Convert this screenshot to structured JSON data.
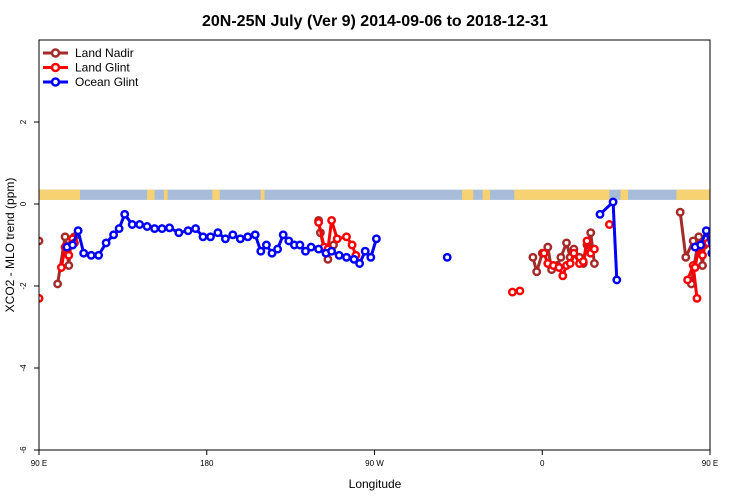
{
  "chart_data": {
    "type": "line",
    "title": "20N-25N July (Ver 9)   2014-09-06 to 2018-12-31",
    "xlabel": "Longitude",
    "ylabel": "XCO2 - MLO trend (ppm)",
    "xlim": [
      90,
      450
    ],
    "ylim": [
      -6,
      4
    ],
    "x_ticks": [
      {
        "value": 90,
        "label": "90 E"
      },
      {
        "value": 180,
        "label": "180"
      },
      {
        "value": 270,
        "label": "90 W"
      },
      {
        "value": 360,
        "label": "0"
      },
      {
        "value": 450,
        "label": "90 E"
      },
      {
        "value": 540,
        "label": "180"
      }
    ],
    "y_ticks": [
      {
        "value": -6,
        "label": "-6"
      },
      {
        "value": -4,
        "label": "-4"
      },
      {
        "value": -2,
        "label": "-2"
      },
      {
        "value": 0,
        "label": "0"
      },
      {
        "value": 2,
        "label": "2"
      }
    ],
    "grid": false,
    "legend_position": "top-left",
    "colors": {
      "land": "#f6d272",
      "ocean": "#a7bcd8"
    },
    "land_segments": [
      [
        90,
        112
      ],
      [
        148,
        152
      ],
      [
        157,
        159
      ],
      [
        183,
        187
      ],
      [
        209,
        211
      ],
      [
        317,
        323
      ],
      [
        328,
        332
      ],
      [
        345,
        396
      ],
      [
        402,
        406
      ],
      [
        432,
        450
      ],
      [
        450,
        460
      ]
    ],
    "series": [
      {
        "name": "Land Nadir",
        "color": "#a52a2a",
        "segments": [
          [
            [
              90,
              -0.9
            ]
          ],
          [
            [
              100,
              -1.95
            ],
            [
              104,
              -0.8
            ],
            [
              106,
              -1.5
            ],
            [
              107,
              -1.0
            ],
            [
              109,
              -0.8
            ]
          ],
          [
            [
              240,
              -0.4
            ],
            [
              241,
              -0.7
            ],
            [
              243,
              -1.1
            ],
            [
              245,
              -1.35
            ],
            [
              246,
              -1.15
            ],
            [
              248,
              -1.0
            ]
          ],
          [
            [
              355,
              -1.3
            ],
            [
              357,
              -1.65
            ],
            [
              360,
              -1.2
            ],
            [
              363,
              -1.05
            ],
            [
              365,
              -1.6
            ],
            [
              368,
              -1.5
            ],
            [
              370,
              -1.3
            ],
            [
              373,
              -0.95
            ],
            [
              375,
              -1.3
            ],
            [
              377,
              -1.1
            ],
            [
              380,
              -1.3
            ],
            [
              382,
              -1.45
            ],
            [
              384,
              -1.0
            ],
            [
              386,
              -0.7
            ],
            [
              388,
              -1.45
            ]
          ],
          [
            [
              434,
              -0.2
            ],
            [
              437,
              -1.3
            ],
            [
              441,
              -0.9
            ]
          ],
          [
            [
              440,
              -1.95
            ],
            [
              444,
              -0.8
            ],
            [
              446,
              -1.5
            ],
            [
              447,
              -1.0
            ],
            [
              449,
              -0.8
            ]
          ]
        ]
      },
      {
        "name": "Land Glint",
        "color": "#ff0000",
        "segments": [
          [
            [
              90,
              -2.3
            ]
          ],
          [
            [
              102,
              -1.55
            ],
            [
              104,
              -1.05
            ],
            [
              106,
              -1.25
            ],
            [
              108,
              -0.85
            ],
            [
              109,
              -0.95
            ]
          ],
          [
            [
              240,
              -0.45
            ],
            [
              243,
              -1.05
            ],
            [
              245,
              -1.1
            ],
            [
              247,
              -0.4
            ],
            [
              250,
              -0.85
            ],
            [
              255,
              -0.8
            ],
            [
              258,
              -1.0
            ],
            [
              260,
              -1.25
            ]
          ],
          [
            [
              344,
              -2.15
            ],
            [
              348,
              -2.12
            ]
          ],
          [
            [
              361,
              -1.2
            ],
            [
              363,
              -1.45
            ],
            [
              366,
              -1.5
            ],
            [
              369,
              -1.55
            ],
            [
              371,
              -1.75
            ],
            [
              373,
              -1.5
            ],
            [
              375,
              -1.45
            ],
            [
              377,
              -1.2
            ],
            [
              380,
              -1.45
            ],
            [
              382,
              -1.4
            ],
            [
              384,
              -0.9
            ],
            [
              386,
              -1.2
            ],
            [
              388,
              -1.1
            ]
          ],
          [
            [
              396,
              -0.5
            ]
          ],
          [
            [
              438,
              -1.85
            ],
            [
              441,
              -1.5
            ],
            [
              443,
              -2.3
            ]
          ],
          [
            [
              442,
              -1.55
            ],
            [
              444,
              -1.05
            ],
            [
              446,
              -1.25
            ],
            [
              448,
              -0.85
            ],
            [
              449,
              -0.95
            ]
          ]
        ]
      },
      {
        "name": "Ocean Glint",
        "color": "#0000ff",
        "segments": [
          [
            [
              105,
              -1.05
            ],
            [
              108,
              -1.0
            ],
            [
              111,
              -0.65
            ],
            [
              114,
              -1.2
            ],
            [
              118,
              -1.25
            ],
            [
              122,
              -1.25
            ],
            [
              126,
              -0.95
            ],
            [
              130,
              -0.75
            ],
            [
              133,
              -0.6
            ],
            [
              136,
              -0.25
            ],
            [
              140,
              -0.5
            ],
            [
              144,
              -0.5
            ],
            [
              148,
              -0.55
            ],
            [
              152,
              -0.6
            ],
            [
              156,
              -0.6
            ],
            [
              160,
              -0.58
            ],
            [
              165,
              -0.7
            ],
            [
              170,
              -0.65
            ],
            [
              174,
              -0.6
            ],
            [
              178,
              -0.8
            ],
            [
              182,
              -0.8
            ],
            [
              186,
              -0.7
            ],
            [
              190,
              -0.85
            ],
            [
              194,
              -0.75
            ],
            [
              198,
              -0.85
            ],
            [
              202,
              -0.8
            ],
            [
              206,
              -0.75
            ],
            [
              209,
              -1.15
            ],
            [
              212,
              -1.0
            ],
            [
              215,
              -1.2
            ],
            [
              218,
              -1.1
            ],
            [
              221,
              -0.75
            ],
            [
              224,
              -0.9
            ],
            [
              227,
              -1.0
            ],
            [
              230,
              -1.0
            ],
            [
              233,
              -1.15
            ],
            [
              236,
              -1.05
            ],
            [
              240,
              -1.1
            ],
            [
              244,
              -1.2
            ],
            [
              247,
              -1.15
            ],
            [
              251,
              -1.25
            ],
            [
              255,
              -1.3
            ],
            [
              259,
              -1.35
            ],
            [
              262,
              -1.45
            ],
            [
              265,
              -1.15
            ],
            [
              268,
              -1.3
            ],
            [
              271,
              -0.85
            ]
          ],
          [
            [
              309,
              -1.3
            ]
          ],
          [
            [
              391,
              -0.25
            ],
            [
              398,
              0.05
            ],
            [
              400,
              -1.85
            ]
          ],
          [
            [
              442,
              -1.05
            ],
            [
              445,
              -1.0
            ],
            [
              448,
              -0.65
            ],
            [
              451,
              -1.2
            ],
            [
              455,
              -1.25
            ],
            [
              459,
              -1.25
            ],
            [
              463,
              -0.95
            ],
            [
              467,
              -0.75
            ],
            [
              470,
              -0.6
            ],
            [
              473,
              -0.25
            ],
            [
              477,
              -0.5
            ],
            [
              481,
              -0.5
            ],
            [
              485,
              -0.55
            ],
            [
              489,
              -0.6
            ]
          ]
        ]
      }
    ]
  }
}
